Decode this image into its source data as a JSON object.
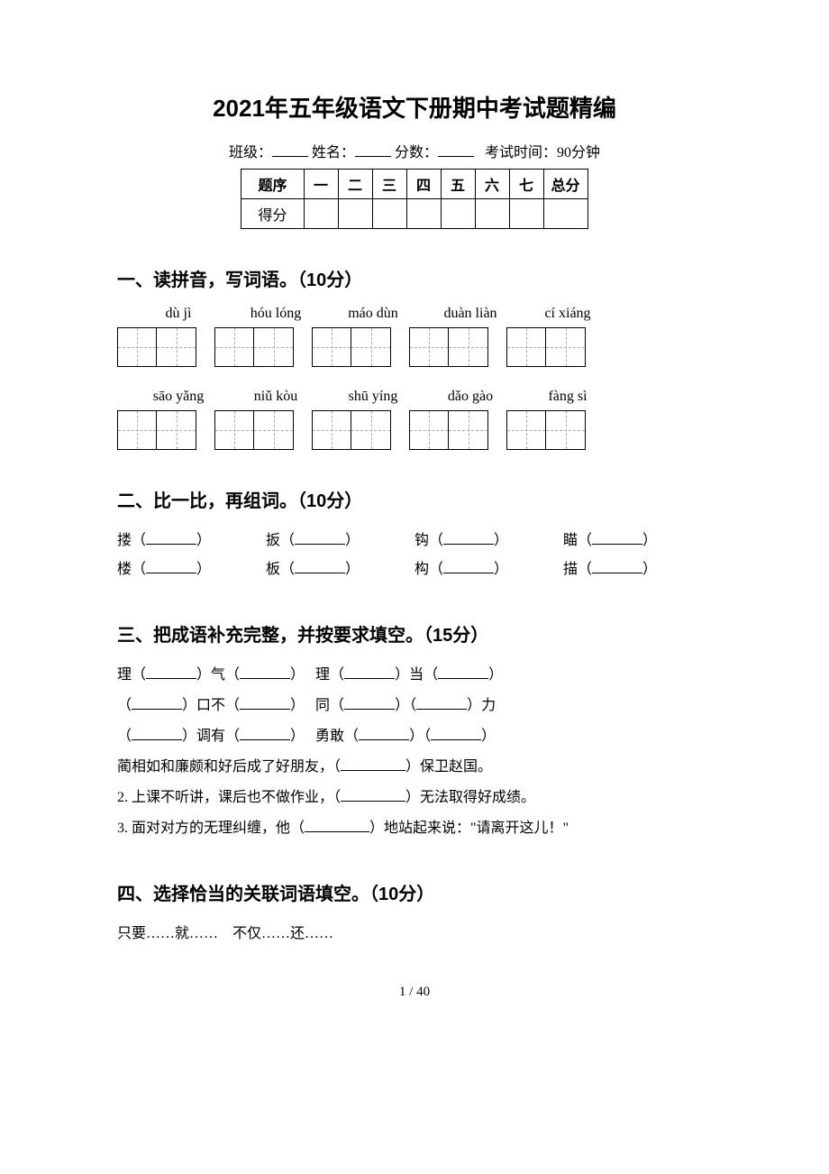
{
  "title": "2021年五年级语文下册期中考试题精编",
  "header": {
    "class_label": "班级：",
    "name_label": "姓名：",
    "score_label": "分数：",
    "time_label": "考试时间：90分钟"
  },
  "score_table": {
    "row1_label": "题序",
    "row2_label": "得分",
    "columns": [
      "一",
      "二",
      "三",
      "四",
      "五",
      "六",
      "七",
      "总分"
    ]
  },
  "section1": {
    "heading": "一、读拼音，写词语。（10分）",
    "pinyin_row1": [
      "dù jì",
      "hóu lóng",
      "máo dùn",
      "duàn liàn",
      "cí xiáng"
    ],
    "pinyin_row2": [
      "sāo yǎng",
      "niǔ kòu",
      "shū yíng",
      "dǎo gào",
      "fàng sì"
    ]
  },
  "section2": {
    "heading": "二、比一比，再组词。（10分）",
    "pairs_row1": [
      "搂",
      "扳",
      "钩",
      "瞄"
    ],
    "pairs_row2": [
      "楼",
      "板",
      "构",
      "描"
    ]
  },
  "section3": {
    "heading": "三、把成语补充完整，并按要求填空。（15分）",
    "line1a_pre": "理（",
    "line1a_mid": "）气（",
    "line1a_post": "）",
    "line1b_pre": "理（",
    "line1b_mid": "）当（",
    "line1b_post": "）",
    "line2a_pre": "（",
    "line2a_mid": "）口不（",
    "line2a_post": "）",
    "line2b_pre": "同（",
    "line2b_mid": "）（",
    "line2b_post": "）力",
    "line3a_pre": "（",
    "line3a_mid": "）调有（",
    "line3a_post": "）",
    "line3b_pre": "勇敢（",
    "line3b_mid": "）（",
    "line3b_post": "）",
    "sent1_pre": "蔺相如和廉颇和好后成了好朋友，（",
    "sent1_post": "）保卫赵国。",
    "sent2_pre": "2. 上课不听讲，课后也不做作业，（",
    "sent2_post": "）无法取得好成绩。",
    "sent3_pre": "3. 面对对方的无理纠缠，他（",
    "sent3_post": "）地站起来说：\"请离开这儿！\""
  },
  "section4": {
    "heading": "四、选择恰当的关联词语填空。（10分）",
    "opt1": "只要……就……",
    "opt2": "不仅……还……"
  },
  "page_number": "1 / 40"
}
